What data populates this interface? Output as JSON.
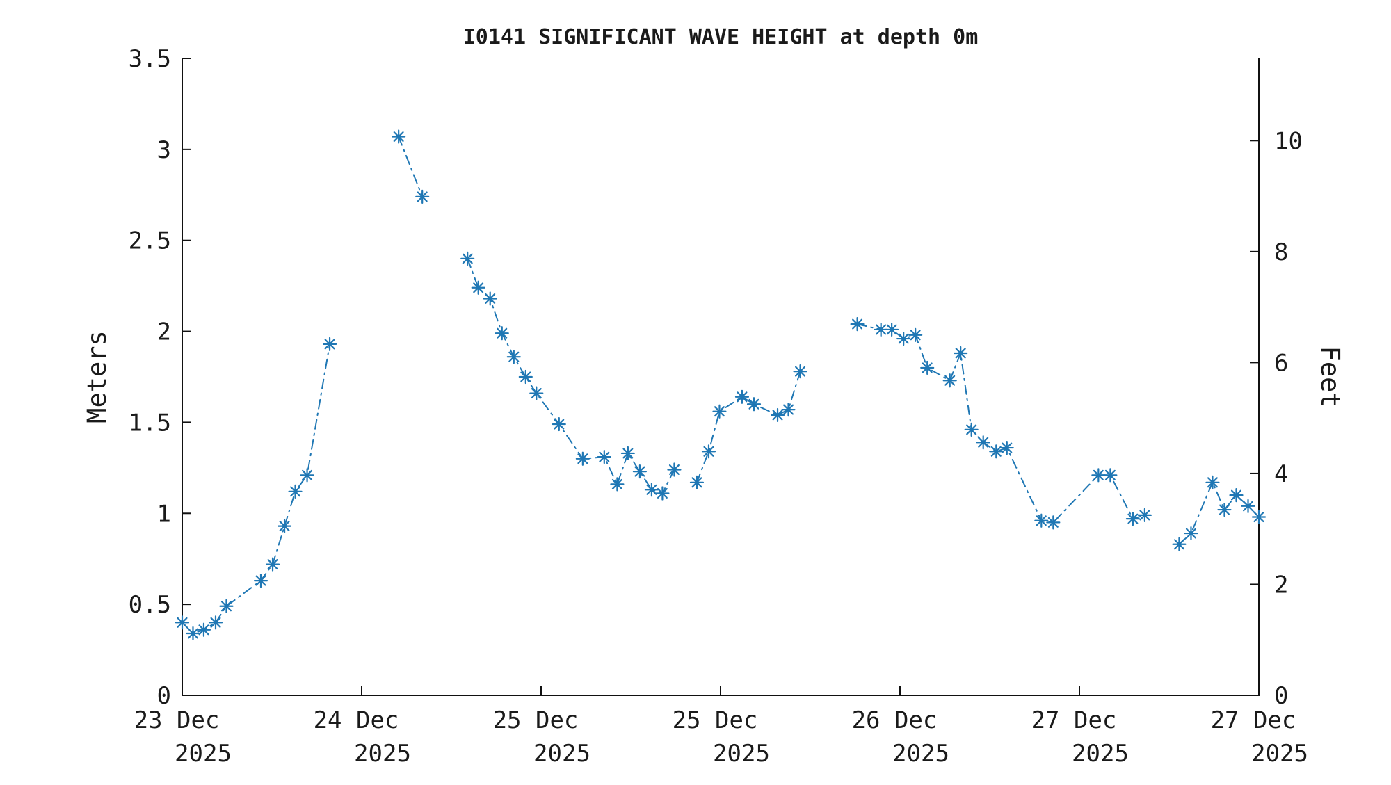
{
  "chart_data": {
    "type": "line",
    "title": "I0141 SIGNIFICANT WAVE HEIGHT at depth 0m",
    "ylabel_left": "Meters",
    "ylabel_right": "Feet",
    "ylim_meters": [
      0,
      3.5
    ],
    "yticks_meters": [
      0,
      0.5,
      1,
      1.5,
      2,
      2.5,
      3,
      3.5
    ],
    "ytick_labels_meters": [
      "0",
      "0.5",
      "1",
      "1.5",
      "2",
      "2.5",
      "3",
      "3.5"
    ],
    "yticks_feet": [
      0,
      2,
      4,
      6,
      8,
      10
    ],
    "ytick_labels_feet": [
      "0",
      "2",
      "4",
      "6",
      "8",
      "10"
    ],
    "meters_per_foot": 0.3048,
    "xticks": [
      {
        "label": "23 Dec",
        "year": "2025"
      },
      {
        "label": "24 Dec",
        "year": "2025"
      },
      {
        "label": "25 Dec",
        "year": "2025"
      },
      {
        "label": "25 Dec",
        "year": "2025"
      },
      {
        "label": "26 Dec",
        "year": "2025"
      },
      {
        "label": "27 Dec",
        "year": "2025"
      },
      {
        "label": "27 Dec",
        "year": "2025"
      }
    ],
    "grid": false,
    "legend": "none",
    "line_color": "#1f77b4",
    "line_style": "dash-dot",
    "marker": "asterisk",
    "axis_color": "#111111",
    "note": "x is fractional position along the time axis (0 = 23 Dec tick at left edge, 1 = 27 Dec tick at right edge); y is significant wave height in meters; segments are separated by data gaps",
    "segments": [
      [
        {
          "x": 0.0,
          "y": 0.4
        },
        {
          "x": 0.01,
          "y": 0.34
        },
        {
          "x": 0.02,
          "y": 0.36
        },
        {
          "x": 0.031,
          "y": 0.4
        },
        {
          "x": 0.041,
          "y": 0.49
        },
        {
          "x": 0.073,
          "y": 0.63
        },
        {
          "x": 0.084,
          "y": 0.72
        },
        {
          "x": 0.095,
          "y": 0.93
        },
        {
          "x": 0.105,
          "y": 1.12
        },
        {
          "x": 0.116,
          "y": 1.21
        },
        {
          "x": 0.137,
          "y": 1.93
        }
      ],
      [
        {
          "x": 0.201,
          "y": 3.07
        },
        {
          "x": 0.223,
          "y": 2.74
        }
      ],
      [
        {
          "x": 0.265,
          "y": 2.4
        },
        {
          "x": 0.275,
          "y": 2.24
        },
        {
          "x": 0.286,
          "y": 2.18
        },
        {
          "x": 0.297,
          "y": 1.99
        },
        {
          "x": 0.308,
          "y": 1.86
        },
        {
          "x": 0.319,
          "y": 1.75
        },
        {
          "x": 0.329,
          "y": 1.66
        },
        {
          "x": 0.35,
          "y": 1.49
        },
        {
          "x": 0.372,
          "y": 1.3
        },
        {
          "x": 0.392,
          "y": 1.31
        },
        {
          "x": 0.404,
          "y": 1.16
        },
        {
          "x": 0.414,
          "y": 1.33
        },
        {
          "x": 0.425,
          "y": 1.23
        },
        {
          "x": 0.436,
          "y": 1.13
        },
        {
          "x": 0.446,
          "y": 1.11
        },
        {
          "x": 0.457,
          "y": 1.24
        }
      ],
      [
        {
          "x": 0.478,
          "y": 1.17
        },
        {
          "x": 0.489,
          "y": 1.34
        },
        {
          "x": 0.499,
          "y": 1.56
        },
        {
          "x": 0.52,
          "y": 1.64
        },
        {
          "x": 0.531,
          "y": 1.6
        },
        {
          "x": 0.553,
          "y": 1.54
        },
        {
          "x": 0.563,
          "y": 1.57
        },
        {
          "x": 0.574,
          "y": 1.78
        }
      ],
      [
        {
          "x": 0.627,
          "y": 2.04
        },
        {
          "x": 0.649,
          "y": 2.01
        },
        {
          "x": 0.659,
          "y": 2.01
        },
        {
          "x": 0.67,
          "y": 1.96
        },
        {
          "x": 0.681,
          "y": 1.98
        },
        {
          "x": 0.692,
          "y": 1.8
        },
        {
          "x": 0.713,
          "y": 1.73
        },
        {
          "x": 0.723,
          "y": 1.88
        },
        {
          "x": 0.733,
          "y": 1.46
        },
        {
          "x": 0.744,
          "y": 1.39
        },
        {
          "x": 0.756,
          "y": 1.34
        },
        {
          "x": 0.766,
          "y": 1.36
        },
        {
          "x": 0.798,
          "y": 0.96
        },
        {
          "x": 0.809,
          "y": 0.95
        },
        {
          "x": 0.851,
          "y": 1.21
        },
        {
          "x": 0.862,
          "y": 1.21
        },
        {
          "x": 0.883,
          "y": 0.97
        },
        {
          "x": 0.894,
          "y": 0.99
        }
      ],
      [
        {
          "x": 0.926,
          "y": 0.83
        },
        {
          "x": 0.937,
          "y": 0.89
        },
        {
          "x": 0.957,
          "y": 1.17
        },
        {
          "x": 0.968,
          "y": 1.02
        },
        {
          "x": 0.979,
          "y": 1.1
        },
        {
          "x": 0.99,
          "y": 1.04
        },
        {
          "x": 1.0,
          "y": 0.98
        }
      ]
    ]
  }
}
